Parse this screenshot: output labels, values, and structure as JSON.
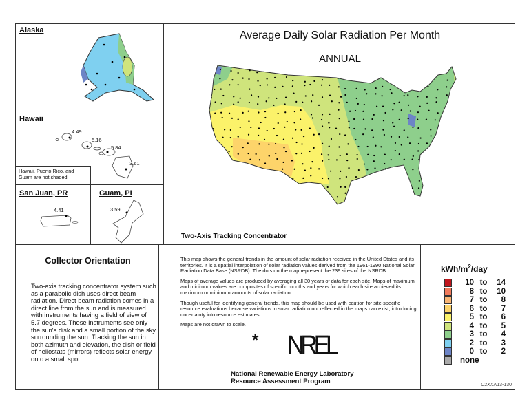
{
  "title": "Average Daily Solar Radiation Per Month",
  "period": "ANNUAL",
  "map_caption": "Two-Axis Tracking Concentrator",
  "insets": {
    "alaska": {
      "label": "Alaska"
    },
    "hawaii": {
      "label": "Hawaii",
      "values": [
        "4.49",
        "5.16",
        "5.84",
        "3.61"
      ],
      "note": "Hawaii, Puerto Rico, and Guam are not shaded."
    },
    "san_juan": {
      "label": "San Juan, PR",
      "value": "4.41"
    },
    "guam": {
      "label": "Guam, PI",
      "value": "3.59"
    }
  },
  "collector": {
    "heading": "Collector Orientation",
    "text": "Two-axis tracking concentrator system such as a parabolic dish uses direct beam radiation.  Direct beam radiation comes in a direct line from the sun and is measured with instruments having a field of view of 5.7 degrees.  These instruments see only the sun's disk and a small portion of the sky surrounding the sun.  Tracking the sun in both azimuth and elevation, the dish or field of heliostats (mirrors) reflects solar energy onto a small spot."
  },
  "description": [
    "This map shows the general trends in the amount of solar radiation received in the United States and its territories.  It is a spatial interpolation of solar radiation values derived from the 1961-1990 National Solar Radiation Data Base (NSRDB).  The dots on the map represent the 239 sites of the NSRDB.",
    "Maps of average values are produced by averaging all 30 years of data for each site. Maps of maximum and minimum values are composites of specific months and years for which each site achieved its maximum or minimum amounts of solar radiation.",
    "Though useful for identifying general trends, this map should be used with caution for site-specific resource evaluations because variations in solar radiation not reflected in the maps can exist, introducing uncertainty into resource estimates.",
    "Maps are not drawn to scale."
  ],
  "logo": {
    "star": "*",
    "text": "NREL"
  },
  "org": {
    "line1": "National Renewable Energy Laboratory",
    "line2": "Resource Assessment Program"
  },
  "legend": {
    "unit_pre": "kWh/m",
    "unit_sup": "2",
    "unit_post": "/day",
    "items": [
      {
        "lo": "10",
        "hi": "14",
        "color": "#c0161d"
      },
      {
        "lo": "8",
        "hi": "10",
        "color": "#f07a5c"
      },
      {
        "lo": "7",
        "hi": "8",
        "color": "#f9b574"
      },
      {
        "lo": "6",
        "hi": "7",
        "color": "#fdd46a"
      },
      {
        "lo": "5",
        "hi": "6",
        "color": "#fbf26a"
      },
      {
        "lo": "4",
        "hi": "5",
        "color": "#cfe47c"
      },
      {
        "lo": "3",
        "hi": "4",
        "color": "#8ecf8c"
      },
      {
        "lo": "2",
        "hi": "3",
        "color": "#7fd0f0"
      },
      {
        "lo": "0",
        "hi": "2",
        "color": "#6d84c6"
      },
      {
        "none": "none",
        "color": "#aaaaaa"
      }
    ],
    "to": "to"
  },
  "code": "C2XXA13-130"
}
